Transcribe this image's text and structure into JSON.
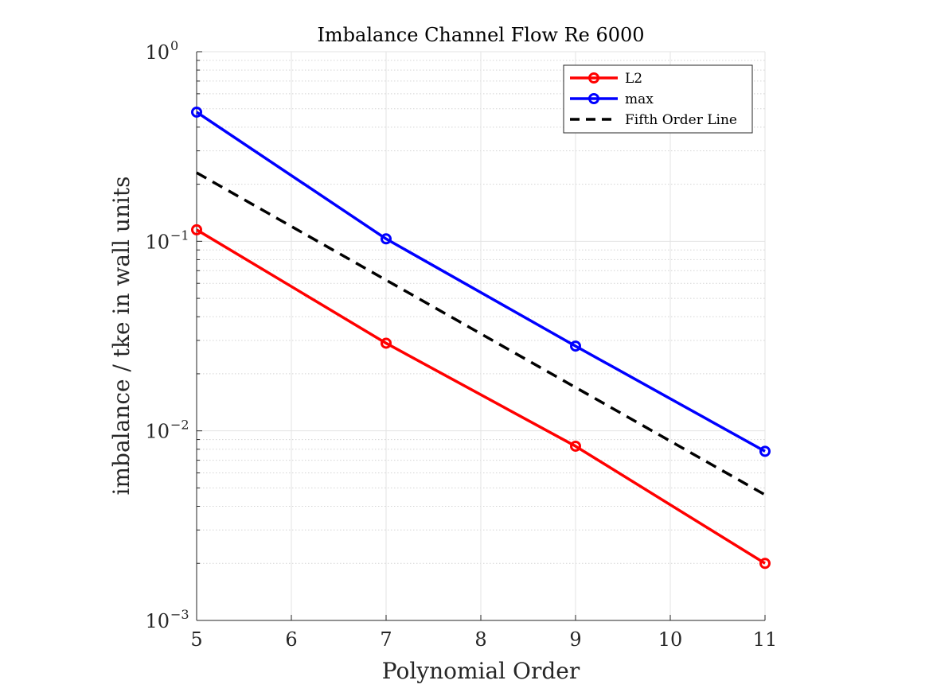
{
  "chart_data": {
    "type": "line",
    "title": "Imbalance Channel Flow Re 6000",
    "xlabel": "Polynomial Order",
    "ylabel": "imbalance / tke in wall units",
    "xlim": [
      5,
      11
    ],
    "ylim": [
      0.001,
      1
    ],
    "yscale": "log",
    "grid": true,
    "legend_position": "top-right",
    "x_ticks": [
      "5",
      "6",
      "7",
      "8",
      "9",
      "10",
      "11"
    ],
    "y_ticks": [
      {
        "value": 0.001,
        "base": "10",
        "exp": "−3"
      },
      {
        "value": 0.01,
        "base": "10",
        "exp": "−2"
      },
      {
        "value": 0.1,
        "base": "10",
        "exp": "−1"
      },
      {
        "value": 1,
        "base": "10",
        "exp": "0"
      }
    ],
    "series": [
      {
        "name": "L2",
        "color": "#ff0000",
        "style": "solid",
        "marker": "circle",
        "x": [
          5,
          7,
          9,
          11
        ],
        "y": [
          0.115,
          0.029,
          0.0083,
          0.002
        ]
      },
      {
        "name": "max",
        "color": "#0000ff",
        "style": "solid",
        "marker": "circle",
        "x": [
          5,
          7,
          9,
          11
        ],
        "y": [
          0.48,
          0.103,
          0.028,
          0.0078
        ]
      },
      {
        "name": "Fifth Order Line",
        "color": "#000000",
        "style": "dashed",
        "marker": "none",
        "x": [
          5,
          11
        ],
        "y": [
          0.23,
          0.0046
        ]
      }
    ]
  }
}
